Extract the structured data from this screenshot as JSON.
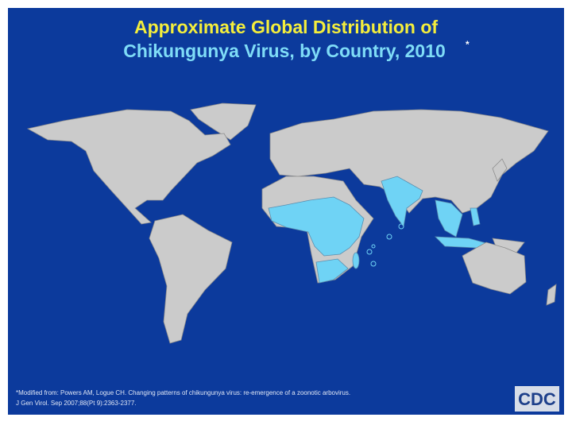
{
  "title": {
    "line1": "Approximate Global Distribution of",
    "line2": "Chikungunya Virus, by Country, 2010",
    "marker": "*"
  },
  "footnote": {
    "line1": "*Modified from: Powers AM, Logue CH. Changing patterns of chikungunya virus: re-emergence of a zoonotic arbovirus.",
    "line2": "J Gen Virol. Sep 2007;88(Pt 9):2363-2377."
  },
  "logo": "CDC"
}
